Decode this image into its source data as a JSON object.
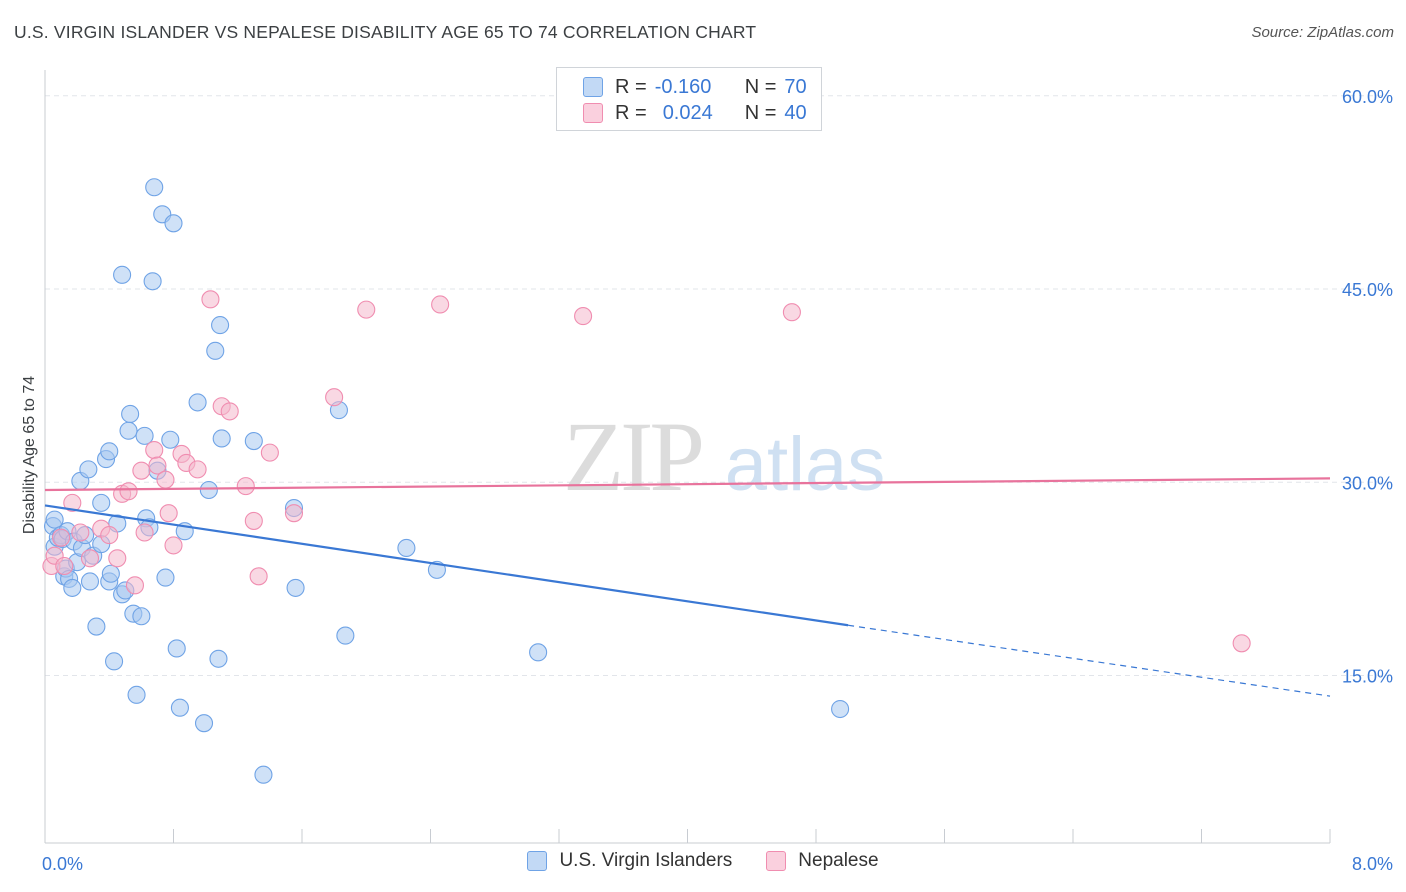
{
  "header": {
    "title": "U.S. VIRGIN ISLANDER VS NEPALESE DISABILITY AGE 65 TO 74 CORRELATION CHART",
    "source": "Source: ZipAtlas.com"
  },
  "watermark": {
    "text_zip": "ZIP",
    "text_atlas": "atlas"
  },
  "legend_top": {
    "rows": [
      {
        "r_label": "R =",
        "r_value": "-0.160",
        "n_label": "N =",
        "n_value": "70",
        "color": "#a8c8f0"
      },
      {
        "r_label": "R =",
        "r_value": "0.024",
        "n_label": "N =",
        "n_value": "40",
        "color": "#f4b8cc"
      }
    ]
  },
  "legend_bottom": [
    {
      "label": "U.S. Virgin Islanders",
      "color": "#a8c8f0"
    },
    {
      "label": "Nepalese",
      "color": "#f4b8cc"
    }
  ],
  "chart_data": {
    "type": "scatter",
    "title": "U.S. VIRGIN ISLANDER VS NEPALESE DISABILITY AGE 65 TO 74 CORRELATION CHART",
    "xlabel": "",
    "ylabel": "Disability Age 65 to 74",
    "xlim": [
      0,
      8
    ],
    "ylim": [
      2,
      62
    ],
    "x_tick_labels": [
      "0.0%",
      "8.0%"
    ],
    "y_ticks": [
      15,
      30,
      45,
      60
    ],
    "y_tick_labels": [
      "15.0%",
      "30.0%",
      "45.0%",
      "60.0%"
    ],
    "grid": true,
    "legend_position": "top-center",
    "series": [
      {
        "name": "U.S. Virgin Islanders",
        "color": "#6fa3e6",
        "fill": "#a8c8f0",
        "points": [
          [
            0.05,
            26.6
          ],
          [
            0.06,
            27.1
          ],
          [
            0.06,
            25.0
          ],
          [
            0.08,
            25.7
          ],
          [
            0.1,
            25.9
          ],
          [
            0.11,
            25.6
          ],
          [
            0.12,
            22.7
          ],
          [
            0.13,
            23.3
          ],
          [
            0.14,
            26.2
          ],
          [
            0.15,
            22.5
          ],
          [
            0.17,
            21.8
          ],
          [
            0.18,
            25.4
          ],
          [
            0.2,
            23.8
          ],
          [
            0.22,
            30.1
          ],
          [
            0.23,
            24.9
          ],
          [
            0.25,
            25.9
          ],
          [
            0.27,
            31.0
          ],
          [
            0.28,
            22.3
          ],
          [
            0.3,
            24.3
          ],
          [
            0.32,
            18.8
          ],
          [
            0.35,
            28.4
          ],
          [
            0.35,
            25.2
          ],
          [
            0.38,
            31.8
          ],
          [
            0.4,
            32.4
          ],
          [
            0.4,
            22.3
          ],
          [
            0.41,
            22.9
          ],
          [
            0.43,
            16.1
          ],
          [
            0.45,
            26.8
          ],
          [
            0.48,
            21.3
          ],
          [
            0.48,
            46.1
          ],
          [
            0.5,
            21.6
          ],
          [
            0.52,
            34.0
          ],
          [
            0.53,
            35.3
          ],
          [
            0.55,
            19.8
          ],
          [
            0.57,
            13.5
          ],
          [
            0.6,
            19.6
          ],
          [
            0.62,
            33.6
          ],
          [
            0.63,
            27.2
          ],
          [
            0.65,
            26.5
          ],
          [
            0.67,
            45.6
          ],
          [
            0.68,
            52.9
          ],
          [
            0.7,
            30.9
          ],
          [
            0.73,
            50.8
          ],
          [
            0.75,
            22.6
          ],
          [
            0.78,
            33.3
          ],
          [
            0.8,
            50.1
          ],
          [
            0.82,
            17.1
          ],
          [
            0.84,
            12.5
          ],
          [
            0.87,
            26.2
          ],
          [
            0.95,
            36.2
          ],
          [
            0.99,
            11.3
          ],
          [
            1.02,
            29.4
          ],
          [
            1.06,
            40.2
          ],
          [
            1.08,
            16.3
          ],
          [
            1.09,
            42.2
          ],
          [
            1.1,
            33.4
          ],
          [
            1.3,
            33.2
          ],
          [
            1.36,
            7.3
          ],
          [
            1.55,
            28.0
          ],
          [
            1.56,
            21.8
          ],
          [
            1.83,
            35.6
          ],
          [
            1.87,
            18.1
          ],
          [
            2.25,
            24.9
          ],
          [
            2.44,
            23.2
          ],
          [
            3.07,
            16.8
          ],
          [
            4.95,
            12.4
          ]
        ]
      },
      {
        "name": "Nepalese",
        "color": "#f08db0",
        "fill": "#f4b8cc",
        "points": [
          [
            0.04,
            23.5
          ],
          [
            0.06,
            24.3
          ],
          [
            0.1,
            25.7
          ],
          [
            0.12,
            23.5
          ],
          [
            0.17,
            28.4
          ],
          [
            0.22,
            26.1
          ],
          [
            0.28,
            24.1
          ],
          [
            0.35,
            26.4
          ],
          [
            0.4,
            25.9
          ],
          [
            0.45,
            24.1
          ],
          [
            0.48,
            29.1
          ],
          [
            0.52,
            29.3
          ],
          [
            0.56,
            22.0
          ],
          [
            0.6,
            30.9
          ],
          [
            0.62,
            26.1
          ],
          [
            0.68,
            32.5
          ],
          [
            0.7,
            31.3
          ],
          [
            0.75,
            30.2
          ],
          [
            0.77,
            27.6
          ],
          [
            0.8,
            25.1
          ],
          [
            0.85,
            32.2
          ],
          [
            0.88,
            31.5
          ],
          [
            0.95,
            31.0
          ],
          [
            1.03,
            44.2
          ],
          [
            1.1,
            35.9
          ],
          [
            1.15,
            35.5
          ],
          [
            1.25,
            29.7
          ],
          [
            1.3,
            27.0
          ],
          [
            1.33,
            22.7
          ],
          [
            1.4,
            32.3
          ],
          [
            1.55,
            27.6
          ],
          [
            1.8,
            36.6
          ],
          [
            2.0,
            43.4
          ],
          [
            2.46,
            43.8
          ],
          [
            3.35,
            42.9
          ],
          [
            4.65,
            43.2
          ],
          [
            7.45,
            17.5
          ]
        ]
      }
    ],
    "trend_lines": [
      {
        "series": "U.S. Virgin Islanders",
        "color": "#3a78d4",
        "x_start": 0.0,
        "y_start": 28.2,
        "x_solid_end": 5.0,
        "y_solid_end": 18.9,
        "x_end": 8.0,
        "y_end": 13.4
      },
      {
        "series": "Nepalese",
        "color": "#e8739c",
        "x_start": 0.0,
        "y_start": 29.4,
        "x_end": 8.0,
        "y_end": 30.3
      }
    ]
  }
}
